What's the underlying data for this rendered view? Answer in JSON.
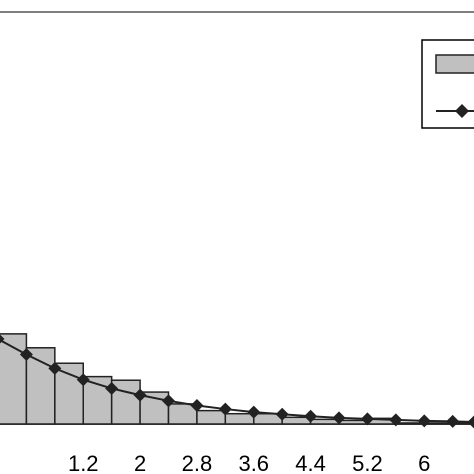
{
  "chart_data": {
    "type": "bar",
    "title": "",
    "xlabel": "",
    "ylabel": "",
    "xlim": [
      0.0,
      6.7
    ],
    "ylim": [
      0,
      0.8
    ],
    "grid": false,
    "legend_position": "top-right",
    "x_tick_labels": [
      {
        "value": 1.2,
        "label": "1.2"
      },
      {
        "value": 2.0,
        "label": "2"
      },
      {
        "value": 2.8,
        "label": "2.8"
      },
      {
        "value": 3.6,
        "label": "3.6"
      },
      {
        "value": 4.4,
        "label": "4.4"
      },
      {
        "value": 5.2,
        "label": "5.2"
      },
      {
        "value": 6.0,
        "label": "6"
      }
    ],
    "bins": [
      {
        "start": 0.0,
        "end": 0.4,
        "value": 0.175
      },
      {
        "start": 0.4,
        "end": 0.8,
        "value": 0.148
      },
      {
        "start": 0.8,
        "end": 1.2,
        "value": 0.118
      },
      {
        "start": 1.2,
        "end": 1.6,
        "value": 0.092
      },
      {
        "start": 1.6,
        "end": 2.0,
        "value": 0.085
      },
      {
        "start": 2.0,
        "end": 2.4,
        "value": 0.062
      },
      {
        "start": 2.4,
        "end": 2.8,
        "value": 0.039
      },
      {
        "start": 2.8,
        "end": 3.2,
        "value": 0.026
      },
      {
        "start": 3.2,
        "end": 3.6,
        "value": 0.02
      },
      {
        "start": 3.6,
        "end": 4.0,
        "value": 0.02
      },
      {
        "start": 4.0,
        "end": 4.4,
        "value": 0.013
      },
      {
        "start": 4.4,
        "end": 4.8,
        "value": 0.009
      },
      {
        "start": 4.8,
        "end": 5.2,
        "value": 0.007
      },
      {
        "start": 5.2,
        "end": 5.6,
        "value": 0.011
      },
      {
        "start": 5.6,
        "end": 6.0,
        "value": 0.002
      },
      {
        "start": 6.0,
        "end": 6.4,
        "value": 0.002
      },
      {
        "start": 6.4,
        "end": 6.7,
        "value": 0.002
      }
    ],
    "series": [
      {
        "type": "line",
        "x": [
          0.0,
          0.4,
          0.8,
          1.2,
          1.6,
          2.0,
          2.4,
          2.8,
          3.2,
          3.6,
          4.0,
          4.4,
          4.8,
          5.2,
          5.6,
          6.0,
          6.4,
          6.7
        ],
        "y": [
          0.165,
          0.135,
          0.108,
          0.086,
          0.069,
          0.056,
          0.045,
          0.036,
          0.029,
          0.023,
          0.019,
          0.015,
          0.012,
          0.01,
          0.008,
          0.006,
          0.005,
          0.004
        ]
      }
    ],
    "colors": {
      "bar_fill": "#c0c0c0",
      "bar_stroke": "#222222",
      "line": "#222222",
      "frame": "#555555"
    }
  }
}
